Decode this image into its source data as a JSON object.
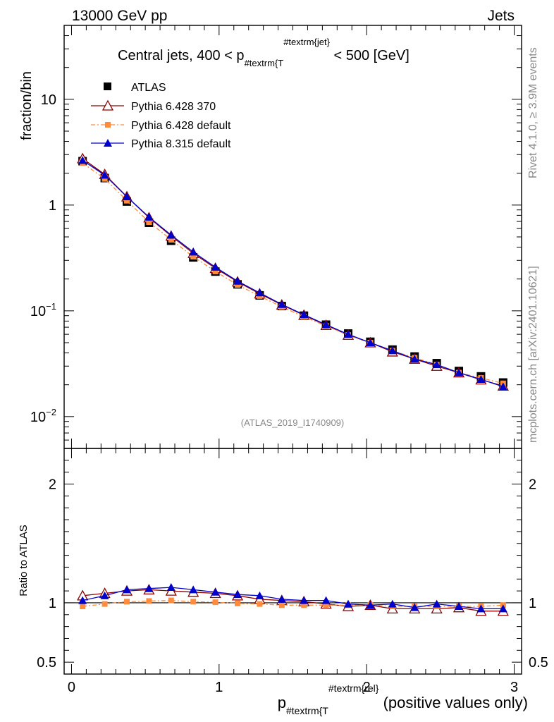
{
  "header": {
    "left": "13000 GeV pp",
    "right": "Jets"
  },
  "side": {
    "rivet": "Rivet 4.1.0, ≥ 3.9M events",
    "mcplots": "mcplots.cern.ch [arXiv:2401.10621]"
  },
  "chart_data": {
    "type": "line",
    "title_main": "Central jets, 400 < p",
    "title_sub": "#textrm{T",
    "title_sup": "#textrm{jet}",
    "title_tail": " < 500 [GeV]",
    "analysis_id": "(ATLAS_2019_I1740909)",
    "ylabel": "fraction/bin",
    "ratio_ylabel": "Ratio to ATLAS",
    "xlabel_main": "p",
    "xlabel_sub": "#textrm{T",
    "xlabel_sup": "#textrm{rel}",
    "xlabel_tail": " (positive values only)",
    "xlim": [
      -0.05,
      3.05
    ],
    "ylim": [
      0.005,
      50
    ],
    "ratio_ylim": [
      0.4,
      2.3
    ],
    "x_ticks": [
      "0",
      "1",
      "2",
      "3"
    ],
    "y_ticks": [
      {
        "base": "10",
        "exp": "−2"
      },
      {
        "base": "10",
        "exp": "−1"
      },
      {
        "base": "1",
        "exp": ""
      },
      {
        "base": "10",
        "exp": ""
      }
    ],
    "ratio_ticks": [
      "0.5",
      "1",
      "2"
    ],
    "x": [
      0.075,
      0.225,
      0.375,
      0.525,
      0.675,
      0.825,
      0.975,
      1.125,
      1.275,
      1.425,
      1.575,
      1.725,
      1.875,
      2.025,
      2.175,
      2.325,
      2.475,
      2.625,
      2.775,
      2.925
    ],
    "series": [
      {
        "name": "ATLAS",
        "color": "#000000",
        "marker": "square",
        "values": [
          2.6,
          1.8,
          1.08,
          0.68,
          0.46,
          0.32,
          0.235,
          0.178,
          0.14,
          0.111,
          0.09,
          0.074,
          0.061,
          0.051,
          0.043,
          0.037,
          0.032,
          0.027,
          0.024,
          0.021
        ]
      },
      {
        "name": "Pythia 6.428 370",
        "color": "#8b0000",
        "marker": "open-triangle",
        "values": [
          2.75,
          1.95,
          1.2,
          0.76,
          0.51,
          0.35,
          0.253,
          0.188,
          0.145,
          0.114,
          0.091,
          0.073,
          0.059,
          0.05,
          0.041,
          0.035,
          0.03,
          0.026,
          0.0223,
          0.0195
        ],
        "ratio": [
          1.06,
          1.08,
          1.1,
          1.11,
          1.1,
          1.09,
          1.08,
          1.06,
          1.03,
          1.02,
          1.01,
          0.99,
          0.97,
          0.98,
          0.95,
          0.95,
          0.95,
          0.96,
          0.93,
          0.93
        ]
      },
      {
        "name": "Pythia 6.428 default",
        "color": "#ff8c3c",
        "marker": "filled-square",
        "values": [
          2.5,
          1.77,
          1.1,
          0.69,
          0.47,
          0.325,
          0.236,
          0.176,
          0.138,
          0.109,
          0.088,
          0.072,
          0.059,
          0.05,
          0.042,
          0.036,
          0.031,
          0.026,
          0.0232,
          0.0206
        ],
        "ratio": [
          0.97,
          0.99,
          1.01,
          1.015,
          1.02,
          1.01,
          1.005,
          0.995,
          0.99,
          0.98,
          0.98,
          0.98,
          0.98,
          0.98,
          0.97,
          0.97,
          0.97,
          0.97,
          0.97,
          0.98
        ]
      },
      {
        "name": "Pythia 8.315 default",
        "color": "#0000cc",
        "marker": "filled-triangle",
        "values": [
          2.65,
          1.92,
          1.2,
          0.77,
          0.52,
          0.36,
          0.259,
          0.191,
          0.148,
          0.115,
          0.092,
          0.074,
          0.06,
          0.05,
          0.042,
          0.035,
          0.031,
          0.026,
          0.0225,
          0.0192
        ],
        "ratio": [
          1.02,
          1.06,
          1.11,
          1.12,
          1.13,
          1.11,
          1.09,
          1.07,
          1.06,
          1.03,
          1.02,
          1.02,
          0.99,
          0.98,
          0.99,
          0.96,
          0.99,
          0.97,
          0.95,
          0.95
        ]
      }
    ]
  }
}
